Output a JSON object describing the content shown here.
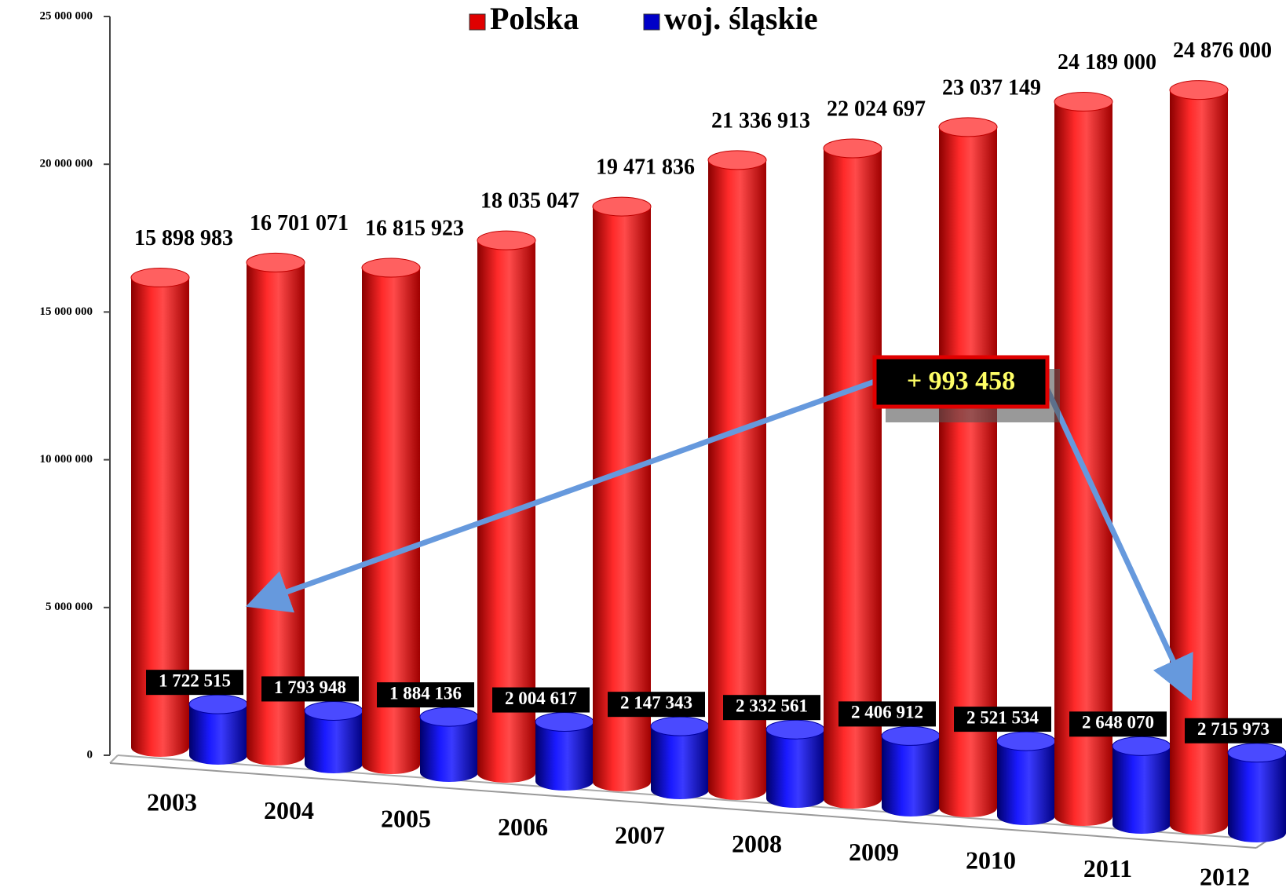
{
  "chart_data": {
    "type": "bar",
    "categories": [
      "2003",
      "2004",
      "2005",
      "2006",
      "2007",
      "2008",
      "2009",
      "2010",
      "2011",
      "2012"
    ],
    "series": [
      {
        "name": "Polska",
        "color": "#e00000",
        "values": [
          15898983,
          16701071,
          16815923,
          18035047,
          19471836,
          21336913,
          22024697,
          23037149,
          24189000,
          24876000
        ],
        "value_labels": [
          "15 898 983",
          "16 701 071",
          "16 815 923",
          "18 035 047",
          "19 471 836",
          "21 336 913",
          "22 024 697",
          "23 037 149",
          "24 189 000",
          "24 876 000"
        ]
      },
      {
        "name": "woj. śląskie",
        "color": "#0000c8",
        "values": [
          1722515,
          1793948,
          1884136,
          2004617,
          2147343,
          2332561,
          2406912,
          2521534,
          2648070,
          2715973
        ],
        "value_labels": [
          "1 722 515",
          "1 793 948",
          "1 884 136",
          "2 004 617",
          "2 147 343",
          "2 332 561",
          "2 406 912",
          "2 521 534",
          "2 648 070",
          "2 715 973"
        ]
      }
    ],
    "ylim": [
      0,
      25000000
    ],
    "yticks": [
      {
        "value": 0,
        "label": "0"
      },
      {
        "value": 5000000,
        "label": "5 000 000"
      },
      {
        "value": 10000000,
        "label": "10 000 000"
      },
      {
        "value": 15000000,
        "label": "15 000 000"
      },
      {
        "value": 20000000,
        "label": "20 000 000"
      },
      {
        "value": 25000000,
        "label": "25 000 000"
      }
    ],
    "annotations": [
      "+ 993 458"
    ],
    "legend": "top"
  }
}
